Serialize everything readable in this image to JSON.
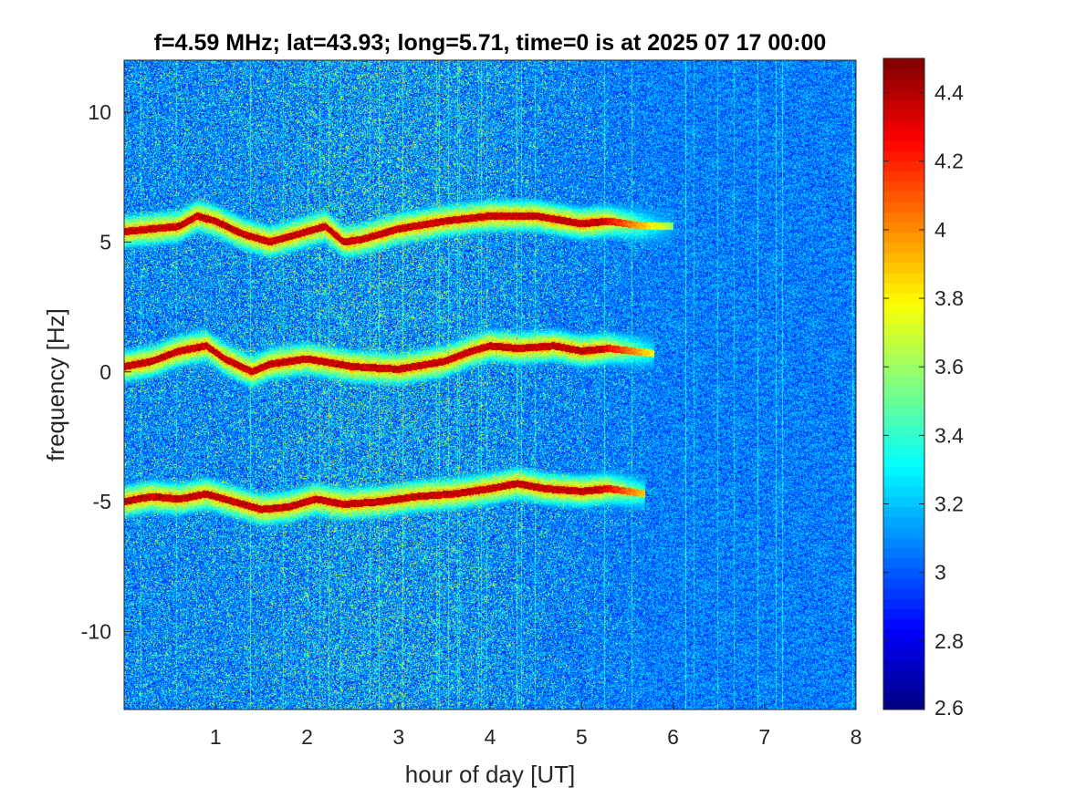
{
  "chart_data": {
    "type": "heatmap",
    "title": "f=4.59 MHz;  lat=43.93; long=5.71, time=0 is at 2025 07 17 00:00",
    "xlabel": "hour of day [UT]",
    "ylabel": "frequency [Hz]",
    "xlim": [
      0,
      8
    ],
    "ylim": [
      -13,
      12
    ],
    "xticks": [
      1,
      2,
      3,
      4,
      5,
      6,
      7,
      8
    ],
    "yticks": [
      -10,
      -5,
      0,
      5,
      10
    ],
    "colorbar": {
      "colormap": "jet",
      "clim": [
        2.6,
        4.5
      ],
      "ticks": [
        2.6,
        2.8,
        3,
        3.2,
        3.4,
        3.6,
        3.8,
        4,
        4.2,
        4.4
      ]
    },
    "traces": [
      {
        "band": "upper",
        "x": [
          0,
          0.3,
          0.6,
          0.8,
          1.0,
          1.3,
          1.6,
          2.0,
          2.2,
          2.4,
          2.6,
          3.0,
          3.5,
          4.0,
          4.5,
          5.0,
          5.3,
          5.7,
          6.0
        ],
        "y": [
          5.4,
          5.5,
          5.6,
          6.0,
          5.8,
          5.3,
          5.0,
          5.4,
          5.6,
          5.0,
          5.1,
          5.5,
          5.8,
          6.0,
          6.0,
          5.7,
          5.8,
          5.6,
          5.6
        ]
      },
      {
        "band": "center",
        "x": [
          0,
          0.3,
          0.6,
          0.9,
          1.1,
          1.4,
          1.6,
          2.0,
          2.5,
          3.0,
          3.5,
          3.8,
          4.0,
          4.3,
          4.7,
          5.0,
          5.3,
          5.8
        ],
        "y": [
          0.2,
          0.4,
          0.8,
          1.0,
          0.5,
          0.0,
          0.3,
          0.5,
          0.2,
          0.1,
          0.4,
          0.8,
          1.0,
          0.9,
          1.0,
          0.8,
          0.9,
          0.7
        ]
      },
      {
        "band": "lower",
        "x": [
          0,
          0.3,
          0.6,
          0.9,
          1.2,
          1.5,
          1.8,
          2.1,
          2.4,
          2.8,
          3.2,
          3.6,
          4.0,
          4.3,
          4.6,
          5.0,
          5.3,
          5.7
        ],
        "y": [
          -5.0,
          -4.8,
          -4.9,
          -4.7,
          -5.0,
          -5.3,
          -5.2,
          -4.9,
          -5.1,
          -5.0,
          -4.8,
          -4.7,
          -4.5,
          -4.3,
          -4.5,
          -4.6,
          -4.5,
          -4.7
        ]
      }
    ]
  }
}
